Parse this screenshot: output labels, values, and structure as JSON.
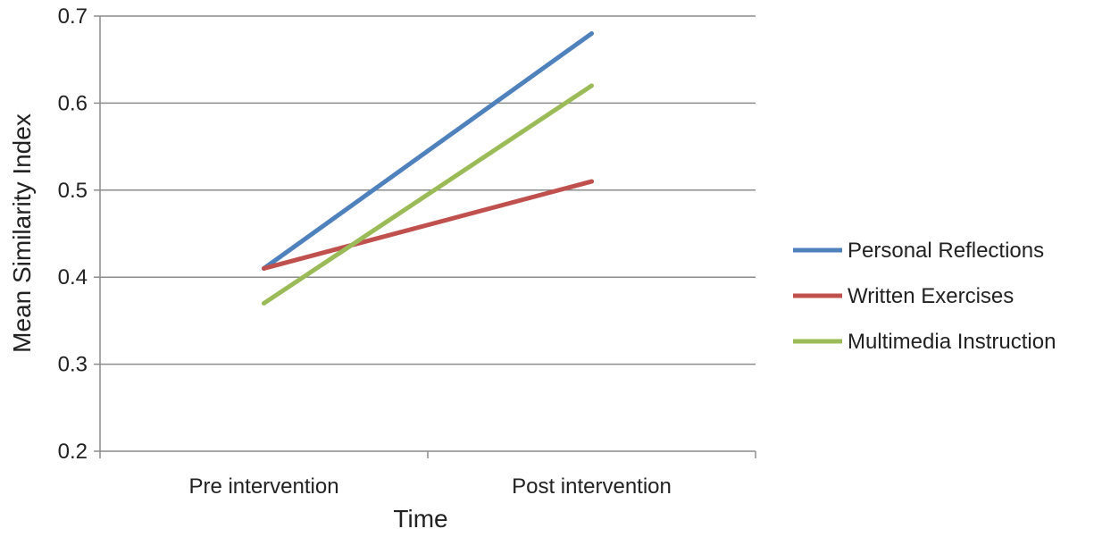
{
  "chart_data": {
    "type": "line",
    "title": "",
    "xlabel": "Time",
    "ylabel": "Mean Similarity Index",
    "categories": [
      "Pre intervention",
      "Post intervention"
    ],
    "ylim": [
      0.2,
      0.7
    ],
    "yticks": [
      "0.2",
      "0.3",
      "0.4",
      "0.5",
      "0.6",
      "0.7"
    ],
    "grid": true,
    "legend_position": "right",
    "series": [
      {
        "name": "Personal Reflections",
        "values": [
          0.41,
          0.68
        ],
        "color": "#4F81BD"
      },
      {
        "name": "Written Exercises",
        "values": [
          0.41,
          0.51
        ],
        "color": "#C0504D"
      },
      {
        "name": "Multimedia Instruction",
        "values": [
          0.37,
          0.62
        ],
        "color": "#9BBB59"
      }
    ]
  }
}
